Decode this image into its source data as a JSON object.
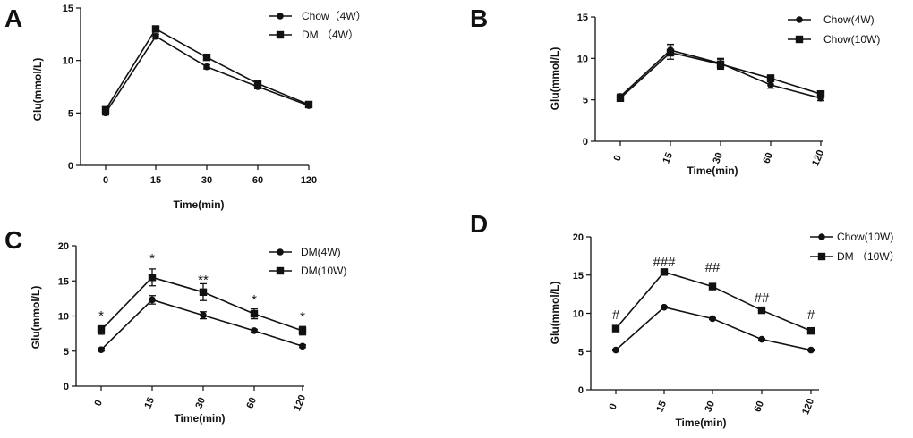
{
  "chart_data": [
    {
      "panel": "A",
      "type": "line",
      "categories": [
        "0",
        "15",
        "30",
        "60",
        "120"
      ],
      "xlabel": "Time(min)",
      "ylabel": "Glu(mmol/L)",
      "ylim": [
        0,
        15
      ],
      "yticks": [
        0,
        5,
        10,
        15
      ],
      "legend_position": "top-right",
      "series": [
        {
          "name": "Chow（4W）",
          "marker": "circle",
          "values": [
            5.0,
            12.3,
            9.4,
            7.5,
            5.7
          ],
          "errors": [
            0.2,
            0.2,
            0.2,
            0.2,
            0.1
          ]
        },
        {
          "name": "DM （4W）",
          "marker": "square",
          "values": [
            5.3,
            13.0,
            10.3,
            7.8,
            5.8
          ],
          "errors": [
            0.2,
            0.2,
            0.2,
            0.2,
            0.1
          ]
        }
      ],
      "annotations": []
    },
    {
      "panel": "B",
      "type": "line",
      "categories": [
        "0",
        "15",
        "30",
        "60",
        "120"
      ],
      "xlabel": "Time(min)",
      "ylabel": "Glu(mmol/L)",
      "ylim": [
        0,
        15
      ],
      "yticks": [
        0,
        5,
        10,
        15
      ],
      "legend_position": "top-right",
      "series": [
        {
          "name": "Chow(4W)",
          "marker": "circle",
          "values": [
            5.4,
            11.0,
            9.4,
            6.8,
            5.2
          ],
          "errors": [
            0.3,
            0.7,
            0.6,
            0.4,
            0.3
          ]
        },
        {
          "name": "Chow(10W)",
          "marker": "square",
          "values": [
            5.2,
            10.7,
            9.3,
            7.6,
            5.7
          ],
          "errors": [
            0.3,
            0.8,
            0.6,
            0.4,
            0.3
          ]
        }
      ],
      "annotations": []
    },
    {
      "panel": "C",
      "type": "line",
      "categories": [
        "0",
        "15",
        "30",
        "60",
        "120"
      ],
      "xlabel": "Time(min)",
      "ylabel": "Glu(mmol/L)",
      "ylim": [
        0,
        20
      ],
      "yticks": [
        0,
        5,
        10,
        15,
        20
      ],
      "legend_position": "top-right",
      "series": [
        {
          "name": "DM(4W)",
          "marker": "circle",
          "values": [
            5.2,
            12.3,
            10.1,
            7.9,
            5.7
          ],
          "errors": [
            0.2,
            0.6,
            0.5,
            0.2,
            0.2
          ]
        },
        {
          "name": "DM(10W)",
          "marker": "square",
          "values": [
            8.0,
            15.5,
            13.4,
            10.3,
            7.9
          ],
          "errors": [
            0.6,
            1.2,
            1.2,
            0.7,
            0.6
          ]
        }
      ],
      "annotations": [
        "*",
        "*",
        "**",
        "*",
        "*"
      ]
    },
    {
      "panel": "D",
      "type": "line",
      "categories": [
        "0",
        "15",
        "30",
        "60",
        "120"
      ],
      "xlabel": "Time(min)",
      "ylabel": "Glu(mmol/L)",
      "ylim": [
        0,
        20
      ],
      "yticks": [
        0,
        5,
        10,
        15,
        20
      ],
      "legend_position": "top-right",
      "series": [
        {
          "name": "Chow(10W)",
          "marker": "circle",
          "values": [
            5.2,
            10.8,
            9.3,
            6.6,
            5.2
          ],
          "errors": [
            0.1,
            0.1,
            0.1,
            0.1,
            0.1
          ]
        },
        {
          "name": "DM （10W）",
          "marker": "square",
          "values": [
            8.0,
            15.4,
            13.5,
            10.4,
            7.7
          ],
          "errors": [
            0.1,
            0.1,
            0.1,
            0.1,
            0.1
          ]
        }
      ],
      "annotations": [
        "#",
        "###",
        "##",
        "##",
        "#"
      ]
    }
  ],
  "colors": {
    "line": "#111111",
    "background": "#ffffff"
  }
}
